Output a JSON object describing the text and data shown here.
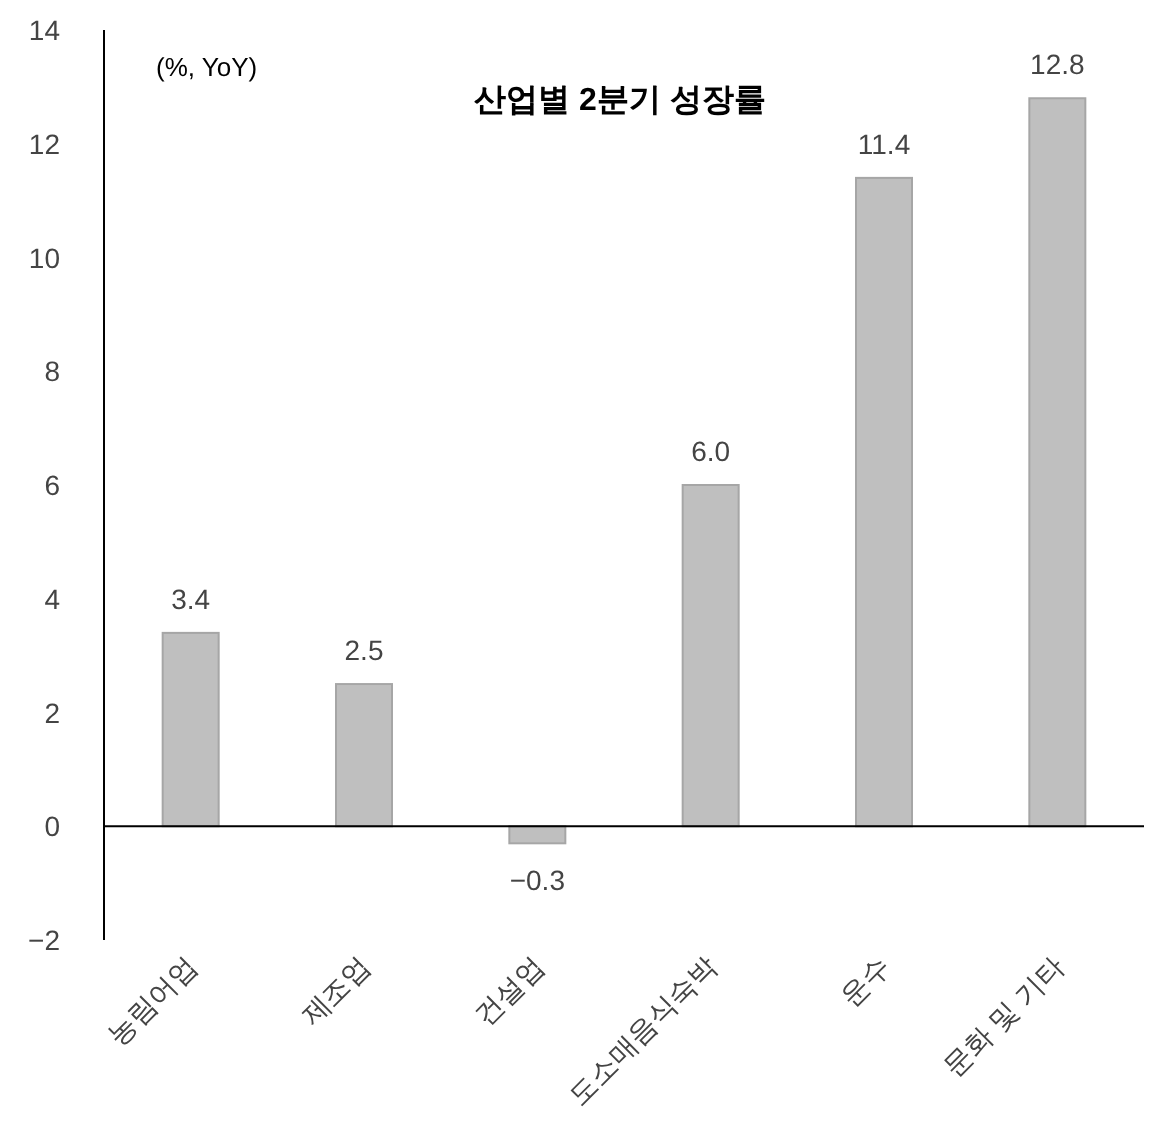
{
  "chart_data": {
    "type": "bar",
    "title": "산업별 2분기 성장률",
    "annotations": [
      "(%, YoY)"
    ],
    "categories": [
      "농림어업",
      "제조업",
      "건설업",
      "도소매음식숙박",
      "운수",
      "문화 및 기타"
    ],
    "values": [
      3.4,
      2.5,
      -0.3,
      6.0,
      11.4,
      12.8
    ],
    "value_labels": [
      "3.4",
      "2.5",
      "−0.3",
      "6.0",
      "11.4",
      "12.8"
    ],
    "color": "#bfbfbf",
    "ylim": [
      -2,
      14
    ],
    "yticks": [
      -2,
      0,
      2,
      4,
      6,
      8,
      10,
      12,
      14
    ]
  }
}
